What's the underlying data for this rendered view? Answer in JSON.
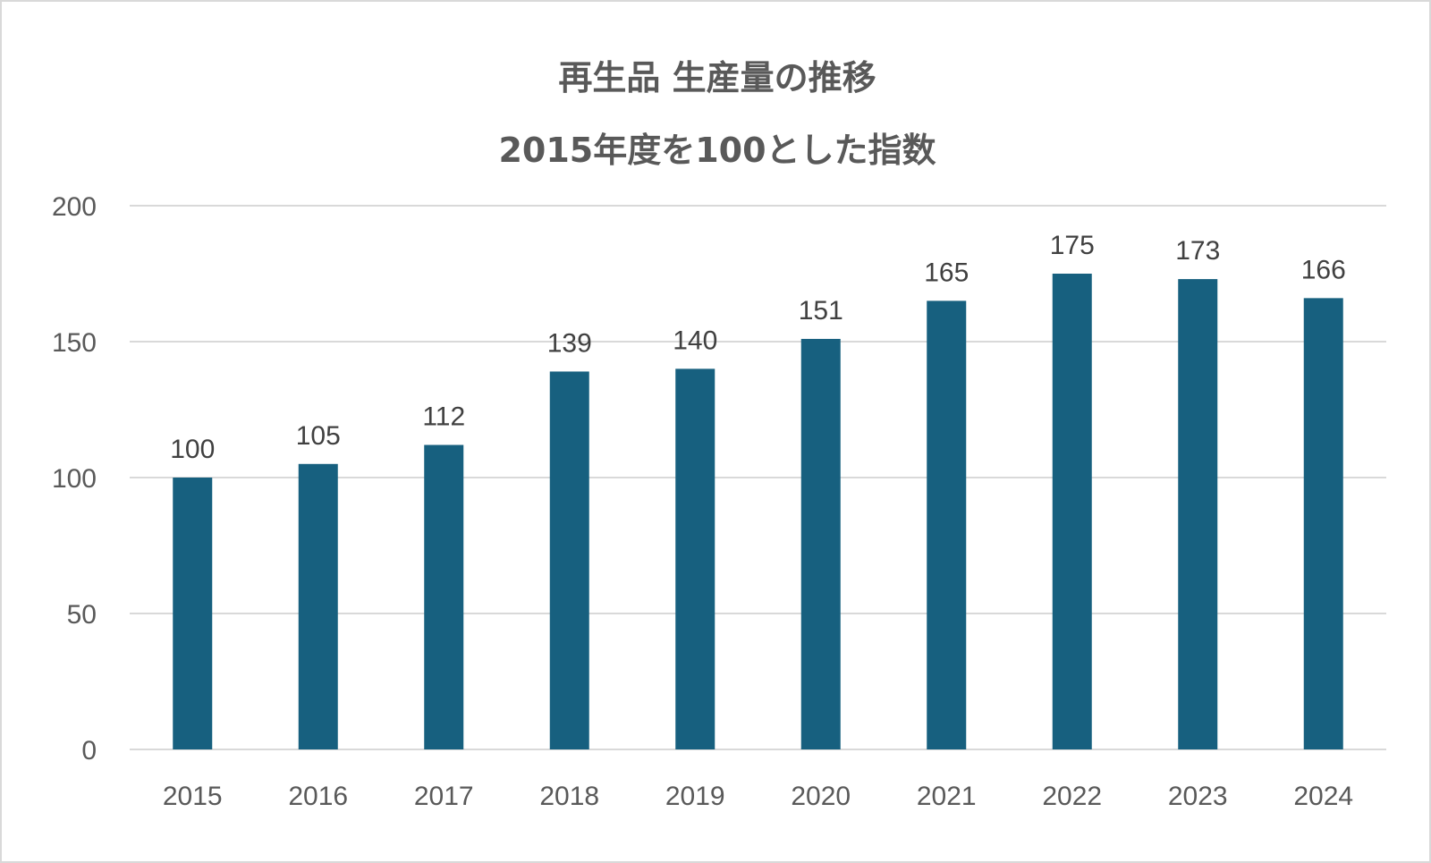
{
  "chart_data": {
    "type": "bar",
    "title": "再生品 生産量の推移",
    "subtitle": "2015年度を100とした指数",
    "categories": [
      "2015",
      "2016",
      "2017",
      "2018",
      "2019",
      "2020",
      "2021",
      "2022",
      "2023",
      "2024"
    ],
    "values": [
      100,
      105,
      112,
      139,
      140,
      151,
      165,
      175,
      173,
      166
    ],
    "ylim": [
      0,
      200
    ],
    "yticks": [
      "0",
      "50",
      "100",
      "150",
      "200"
    ],
    "xlabel": "",
    "ylabel": "",
    "grid": true,
    "legend": "none",
    "bar_color": "#17607f",
    "grid_color": "#d9d9d9"
  }
}
